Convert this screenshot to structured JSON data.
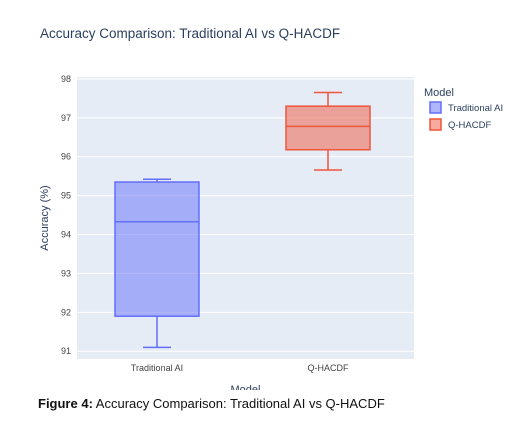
{
  "chart_data": {
    "type": "box",
    "title": "Accuracy Comparison: Traditional AI vs Q-HACDF",
    "xlabel": "Model",
    "ylabel": "Accuracy (%)",
    "ylim": [
      90.8,
      98.05
    ],
    "yticks": [
      91,
      92,
      93,
      94,
      95,
      96,
      97,
      98
    ],
    "categories": [
      "Traditional AI",
      "Q-HACDF"
    ],
    "grid": true,
    "legend_title": "Model",
    "legend_position": "top-right",
    "series": [
      {
        "name": "Traditional AI",
        "color": "#636efa",
        "min": 91.1,
        "q1": 91.9,
        "median": 94.33,
        "q3": 95.35,
        "max": 95.42
      },
      {
        "name": "Q-HACDF",
        "color": "#ef553b",
        "min": 95.66,
        "q1": 96.18,
        "median": 96.78,
        "q3": 97.3,
        "max": 97.65
      }
    ]
  },
  "caption": {
    "label": "Figure 4:",
    "text": " Accuracy Comparison: Traditional AI vs Q-HACDF"
  }
}
